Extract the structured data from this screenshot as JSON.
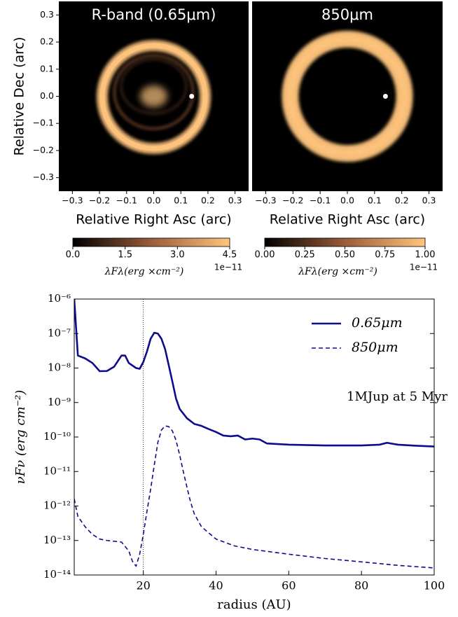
{
  "chart_data": [
    {
      "type": "image",
      "title": "R-band (0.65μm)",
      "xlabel": "Relative Right Asc (arc)",
      "ylabel": "Relative Dec (arc)",
      "xlim": [
        -0.35,
        0.35
      ],
      "ylim": [
        -0.35,
        0.35
      ],
      "xticks": [
        {
          "value": -0.3,
          "label": "−0.3"
        },
        {
          "value": -0.2,
          "label": "−0.2"
        },
        {
          "value": -0.1,
          "label": "−0.1"
        },
        {
          "value": 0,
          "label": "0.0"
        },
        0.1,
        0.2,
        0.3
      ],
      "yticks": [
        {
          "value": -0.3,
          "label": "−0.3"
        },
        {
          "value": -0.2,
          "label": "−0.2"
        },
        {
          "value": -0.1,
          "label": "−0.1"
        },
        {
          "value": 0,
          "label": "0.0"
        },
        0.1,
        0.2,
        0.3
      ],
      "planet": {
        "x": 0.14,
        "y": 0
      },
      "colorbar": {
        "lim": [
          0,
          4.5
        ],
        "ticks": [
          {
            "value": 0,
            "label": "0.0"
          },
          1.5,
          {
            "value": 3,
            "label": "3.0"
          },
          4.5
        ],
        "label": "λFλ(erg ×cm⁻²)",
        "offset": "1e−11",
        "colors": [
          "#000000",
          "#9a5c3a",
          "#ffc57e"
        ]
      }
    },
    {
      "type": "image",
      "title": "850μm",
      "xlabel": "Relative Right Asc (arc)",
      "xlim": [
        -0.35,
        0.35
      ],
      "ylim": [
        -0.35,
        0.35
      ],
      "xticks": [
        {
          "value": -0.3,
          "label": "−0.3"
        },
        {
          "value": -0.2,
          "label": "−0.2"
        },
        {
          "value": -0.1,
          "label": "−0.1"
        },
        {
          "value": 0,
          "label": "0.0"
        },
        0.1,
        0.2,
        0.3
      ],
      "planet": {
        "x": 0.14,
        "y": 0
      },
      "colorbar": {
        "lim": [
          0,
          1
        ],
        "ticks": [
          {
            "value": 0,
            "label": "0.00"
          },
          0.25,
          {
            "value": 0.5,
            "label": "0.50"
          },
          0.75,
          {
            "value": 1,
            "label": "1.00"
          }
        ],
        "label": "λFλ(erg ×cm⁻²)",
        "offset": "1e−11",
        "colors": [
          "#000000",
          "#9a5c3a",
          "#ffc57e"
        ]
      }
    },
    {
      "type": "line",
      "xlabel": "radius (AU)",
      "ylabel": "νFν (erg cm⁻²)",
      "annotation": "1MJup at  5 Myr",
      "xlim": [
        1,
        100
      ],
      "ylim": [
        1e-14,
        1e-06
      ],
      "yscale": "log",
      "vline": 20,
      "legend": "upper right",
      "xticks": [
        20,
        40,
        60,
        80,
        100
      ],
      "yticks": [
        {
          "value": 1e-14,
          "label": "10⁻¹⁴"
        },
        {
          "value": 1e-13,
          "label": "10⁻¹³"
        },
        {
          "value": 1e-12,
          "label": "10⁻¹²"
        },
        {
          "value": 1e-11,
          "label": "10⁻¹¹"
        },
        {
          "value": 1e-10,
          "label": "10⁻¹⁰"
        },
        {
          "value": 1e-09,
          "label": "10⁻⁹"
        },
        {
          "value": 1e-08,
          "label": "10⁻⁸"
        },
        {
          "value": 1e-07,
          "label": "10⁻⁷"
        },
        {
          "value": 1e-06,
          "label": "10⁻⁶"
        }
      ],
      "series": [
        {
          "name": "0.65μm",
          "color": "#0c0c8c",
          "dash": "solid",
          "x": [
            1,
            2,
            4,
            6,
            8,
            10,
            12,
            14,
            15,
            16,
            18,
            19,
            20,
            21,
            22,
            23,
            24,
            25,
            26,
            27,
            28,
            29,
            30,
            32,
            34,
            36,
            38,
            40,
            42,
            44,
            46,
            48,
            50,
            52,
            54,
            60,
            70,
            80,
            85,
            87,
            90,
            95,
            100
          ],
          "values": [
            1e-06,
            2.3e-08,
            1.9e-08,
            1.4e-08,
            8.1e-09,
            8.2e-09,
            1.1e-08,
            2.3e-08,
            2.3e-08,
            1.4e-08,
            1e-08,
            9.5e-09,
            1.5e-08,
            3e-08,
            7e-08,
            1.05e-07,
            1e-07,
            7e-08,
            3.5e-08,
            1.2e-08,
            4e-09,
            1.3e-09,
            6.5e-10,
            3.5e-10,
            2.4e-10,
            2.1e-10,
            1.7e-10,
            1.4e-10,
            1.1e-10,
            1.05e-10,
            1.1e-10,
            8.5e-11,
            9e-11,
            8.5e-11,
            6.5e-11,
            6e-11,
            5.7e-11,
            5.7e-11,
            6e-11,
            6.8e-11,
            6e-11,
            5.6e-11,
            5.3e-11
          ]
        },
        {
          "name": "850μm",
          "color": "#0c0c8c",
          "dash": "dashed",
          "x": [
            1,
            2,
            4,
            6,
            8,
            10,
            12,
            14,
            16,
            17,
            18,
            19,
            20,
            21,
            22,
            23,
            24,
            25,
            26,
            27,
            28,
            29,
            30,
            31,
            32,
            33,
            34,
            36,
            40,
            45,
            50,
            60,
            70,
            80,
            90,
            100
          ],
          "values": [
            1.6e-12,
            5e-13,
            2.5e-13,
            1.5e-13,
            1.1e-13,
            1e-13,
            9.5e-14,
            9e-14,
            5e-14,
            2.5e-14,
            1.8e-14,
            4e-14,
            1.5e-13,
            7e-13,
            3e-12,
            1.5e-11,
            7e-11,
            1.6e-10,
            2.1e-10,
            2e-10,
            1.5e-10,
            8e-11,
            3e-11,
            1e-11,
            3.5e-12,
            1.3e-12,
            6e-13,
            2.5e-13,
            1.1e-13,
            7e-14,
            5.5e-14,
            4e-14,
            3e-14,
            2.4e-14,
            1.9e-14,
            1.6e-14
          ]
        }
      ]
    }
  ]
}
